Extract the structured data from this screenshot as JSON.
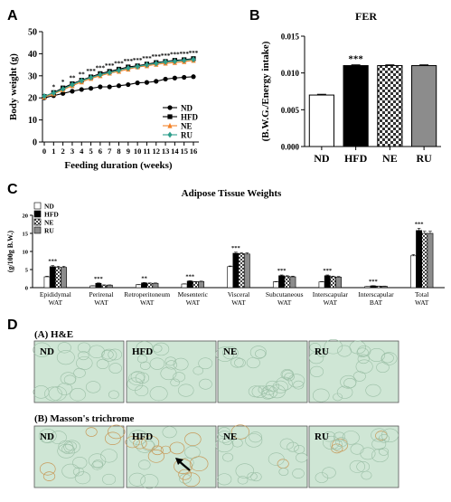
{
  "panels": {
    "A": {
      "letter": "A",
      "chart_data": {
        "type": "line",
        "xlabel": "Feeding duration (weeks)",
        "ylabel": "Body weight (g)",
        "xlim": [
          0,
          16
        ],
        "ylim": [
          0,
          50
        ],
        "x": [
          0,
          1,
          2,
          3,
          4,
          5,
          6,
          7,
          8,
          9,
          10,
          11,
          12,
          13,
          14,
          15,
          16
        ],
        "x_ticks": [
          "0",
          "1",
          "2",
          "3",
          "4",
          "5",
          "6",
          "7",
          "8",
          "9",
          "10",
          "11",
          "12",
          "13",
          "14",
          "15",
          "16"
        ],
        "y_ticks": [
          "0",
          "10",
          "20",
          "30",
          "40",
          "50"
        ],
        "series": [
          {
            "name": "ND",
            "color": "#000000",
            "marker": "circle",
            "values": [
              20.0,
              21.0,
              22.0,
              23.0,
              23.8,
              24.3,
              25.0,
              25.0,
              25.5,
              26.0,
              26.8,
              27.0,
              27.5,
              28.5,
              29.0,
              29.3,
              29.6
            ]
          },
          {
            "name": "HFD",
            "color": "#000000",
            "marker": "square",
            "values": [
              20.6,
              22.4,
              24.5,
              26.4,
              28.0,
              29.5,
              31.0,
              32.0,
              33.0,
              34.0,
              34.5,
              35.3,
              36.0,
              36.5,
              37.0,
              37.3,
              37.8
            ]
          },
          {
            "name": "NE",
            "color": "#f4832a",
            "marker": "triangle",
            "values": [
              20.4,
              21.8,
              23.6,
              25.5,
              27.2,
              28.8,
              30.0,
              31.2,
              32.0,
              33.0,
              34.0,
              34.5,
              35.2,
              35.7,
              36.0,
              36.4,
              37.0
            ]
          },
          {
            "name": "RU",
            "color": "#2e9f8c",
            "marker": "diamond",
            "values": [
              20.8,
              22.2,
              24.0,
              26.0,
              27.8,
              29.2,
              30.5,
              31.5,
              32.5,
              33.5,
              34.2,
              35.0,
              35.6,
              36.3,
              36.6,
              37.0,
              37.4
            ]
          }
        ],
        "annotations": [
          {
            "x": 1,
            "text": "*"
          },
          {
            "x": 2,
            "text": "*"
          },
          {
            "x": 3,
            "text": "**"
          },
          {
            "x": 4,
            "text": "**"
          },
          {
            "x": 5,
            "text": "***"
          },
          {
            "x": 6,
            "text": "***"
          },
          {
            "x": 7,
            "text": "***"
          },
          {
            "x": 8,
            "text": "***"
          },
          {
            "x": 9,
            "text": "***"
          },
          {
            "x": 10,
            "text": "***"
          },
          {
            "x": 11,
            "text": "***"
          },
          {
            "x": 12,
            "text": "***"
          },
          {
            "x": 13,
            "text": "***"
          },
          {
            "x": 14,
            "text": "***"
          },
          {
            "x": 15,
            "text": "***"
          },
          {
            "x": 16,
            "text": "***"
          }
        ],
        "legend_placement": "bottom-right"
      }
    },
    "B": {
      "letter": "B",
      "chart_data": {
        "type": "bar",
        "title": "FER",
        "ylabel": "(B.W.G./Energy intake)",
        "categories": [
          "ND",
          "HFD",
          "NE",
          "RU"
        ],
        "values": [
          0.007,
          0.011,
          0.011,
          0.011
        ],
        "errors": [
          0.0001,
          0.0001,
          0.0001,
          0.0001
        ],
        "ylim": [
          0,
          0.015
        ],
        "y_ticks": [
          "0.000",
          "0.005",
          "0.010",
          "0.015"
        ],
        "fills": [
          "white",
          "black",
          "checker",
          "gray"
        ],
        "annotations": [
          {
            "category": "HFD",
            "text": "***"
          }
        ]
      }
    },
    "C": {
      "letter": "C",
      "chart_data": {
        "type": "bar",
        "title": "Adipose Tissue Weights",
        "ylabel": "(g/100g B.W.)",
        "ylim": [
          0,
          20
        ],
        "y_ticks": [
          "0",
          "5",
          "10",
          "15",
          "20"
        ],
        "categories": [
          [
            "Epididymal",
            "WAT"
          ],
          [
            "Perirenal",
            "WAT"
          ],
          [
            "Retroperitoneum",
            "WAT"
          ],
          [
            "Mesenteric",
            "WAT"
          ],
          [
            "Visceral",
            "WAT"
          ],
          [
            "Subcutaneous",
            "WAT"
          ],
          [
            "Interscapular",
            "WAT"
          ],
          [
            "Interscapular",
            "BAT"
          ],
          [
            "Total",
            "WAT"
          ]
        ],
        "series": [
          {
            "name": "ND",
            "fill": "white",
            "values": [
              3.0,
              0.5,
              0.8,
              1.0,
              5.8,
              1.6,
              1.6,
              0.3,
              8.8
            ]
          },
          {
            "name": "HFD",
            "fill": "black",
            "values": [
              5.8,
              1.2,
              1.3,
              1.8,
              9.5,
              3.3,
              3.3,
              0.5,
              15.8
            ]
          },
          {
            "name": "NE",
            "fill": "checker",
            "values": [
              5.6,
              0.7,
              1.2,
              1.6,
              9.4,
              3.1,
              3.0,
              0.4,
              15.0
            ]
          },
          {
            "name": "RU",
            "fill": "gray",
            "values": [
              5.6,
              0.7,
              1.2,
              1.7,
              9.3,
              3.0,
              2.9,
              0.4,
              15.0
            ]
          }
        ],
        "errors": [
          0.3,
          0.1,
          0.1,
          0.1,
          0.3,
          0.2,
          0.2,
          0.05,
          0.6
        ],
        "annotations": [
          "***",
          "***",
          "**",
          "***",
          "***",
          "***",
          "***",
          "***",
          "***"
        ],
        "legend_placement": "top-left"
      }
    },
    "D": {
      "letter": "D",
      "row_a_title": "(A) H&E",
      "row_b_title": "(B) Masson's trichrome",
      "labels": [
        "ND",
        "HFD",
        "NE",
        "RU"
      ]
    }
  }
}
